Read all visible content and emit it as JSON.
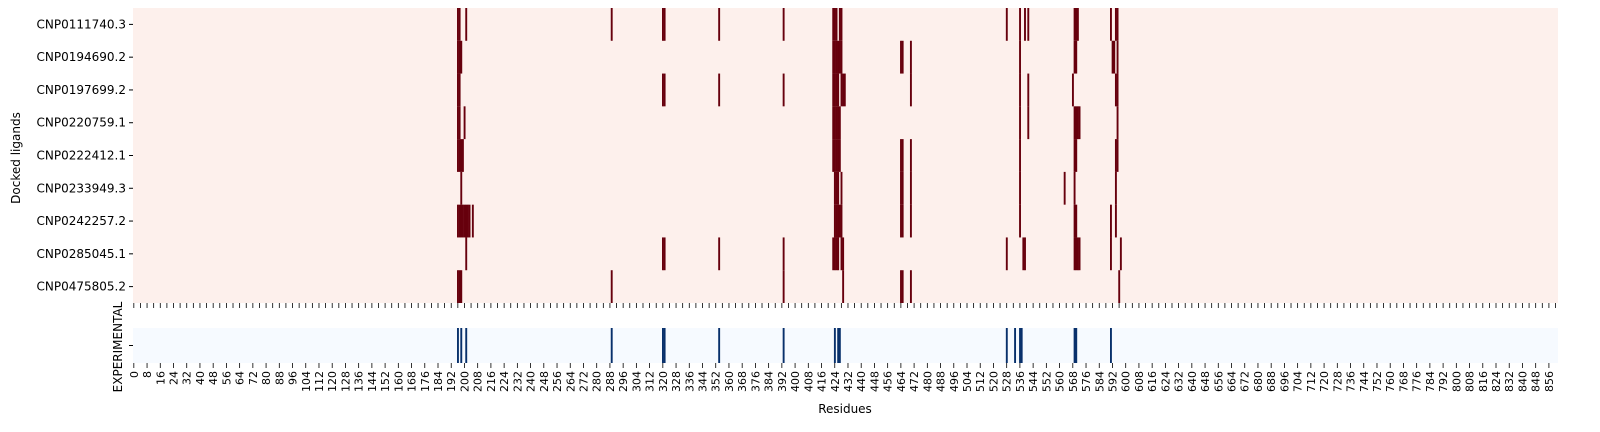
{
  "chart_data": [
    {
      "type": "heatmap",
      "ylabel": "Docked ligands",
      "xlabel": "",
      "rows": [
        "CNP0111740.3",
        "CNP0194690.2",
        "CNP0197699.2",
        "CNP0220759.1",
        "CNP0222412.1",
        "CNP0233949.3",
        "CNP0242257.2",
        "CNP0285045.1",
        "CNP0475805.2"
      ],
      "x_range": [
        0,
        862
      ],
      "colors": {
        "background": "#fdf0ec",
        "mark": "#67000d"
      },
      "marks": [
        [
          196,
          197,
          201,
          289,
          320,
          321,
          354,
          393,
          423,
          424,
          425,
          427,
          428,
          528,
          536,
          539,
          541,
          569,
          570,
          571,
          591,
          594,
          595
        ],
        [
          196,
          197,
          198,
          423,
          424,
          425,
          426,
          427,
          428,
          464,
          465,
          470,
          536,
          569,
          570,
          592,
          593,
          595
        ],
        [
          196,
          197,
          320,
          321,
          354,
          393,
          423,
          424,
          425,
          426,
          428,
          429,
          430,
          470,
          536,
          541,
          568,
          594,
          595
        ],
        [
          196,
          197,
          200,
          423,
          424,
          425,
          426,
          427,
          536,
          541,
          569,
          570,
          571,
          572,
          595
        ],
        [
          196,
          197,
          198,
          199,
          423,
          424,
          425,
          426,
          427,
          464,
          465,
          470,
          536,
          569,
          570,
          594,
          595
        ],
        [
          198,
          424,
          425,
          426,
          428,
          464,
          465,
          470,
          536,
          563,
          569,
          594
        ],
        [
          196,
          197,
          198,
          199,
          200,
          201,
          202,
          203,
          205,
          424,
          425,
          426,
          427,
          428,
          464,
          465,
          470,
          536,
          569,
          570,
          591,
          594
        ],
        [
          201,
          320,
          321,
          354,
          393,
          423,
          424,
          425,
          426,
          428,
          429,
          528,
          538,
          539,
          569,
          570,
          571,
          572,
          591,
          597
        ],
        [
          196,
          197,
          198,
          289,
          393,
          429,
          464,
          465,
          470,
          596
        ]
      ]
    },
    {
      "type": "heatmap",
      "ylabel": "",
      "xlabel": "Residues",
      "rows": [
        "EXPERIMENTAL"
      ],
      "x_range": [
        0,
        862
      ],
      "colors": {
        "background": "#f6faff",
        "mark": "#08306b"
      },
      "marks": [
        [
          196,
          198,
          201,
          289,
          320,
          321,
          354,
          393,
          424,
          426,
          427,
          528,
          533,
          536,
          537,
          569,
          570,
          591
        ]
      ],
      "xtick_labels": [
        "0",
        "8",
        "16",
        "24",
        "32",
        "40",
        "48",
        "56",
        "64",
        "72",
        "80",
        "88",
        "96",
        "104",
        "112",
        "120",
        "128",
        "136",
        "144",
        "152",
        "160",
        "168",
        "176",
        "184",
        "192",
        "200",
        "208",
        "216",
        "224",
        "232",
        "240",
        "248",
        "256",
        "264",
        "272",
        "280",
        "288",
        "296",
        "304",
        "312",
        "320",
        "328",
        "336",
        "344",
        "352",
        "360",
        "368",
        "376",
        "384",
        "392",
        "400",
        "408",
        "416",
        "424",
        "432",
        "440",
        "448",
        "456",
        "464",
        "472",
        "480",
        "488",
        "496",
        "504",
        "512",
        "520",
        "528",
        "536",
        "544",
        "552",
        "560",
        "568",
        "576",
        "584",
        "592",
        "600",
        "608",
        "616",
        "624",
        "632",
        "640",
        "648",
        "656",
        "664",
        "672",
        "680",
        "688",
        "696",
        "704",
        "712",
        "720",
        "728",
        "736",
        "744",
        "752",
        "760",
        "768",
        "776",
        "784",
        "792",
        "800",
        "808",
        "816",
        "824",
        "832",
        "840",
        "848",
        "856"
      ]
    }
  ]
}
